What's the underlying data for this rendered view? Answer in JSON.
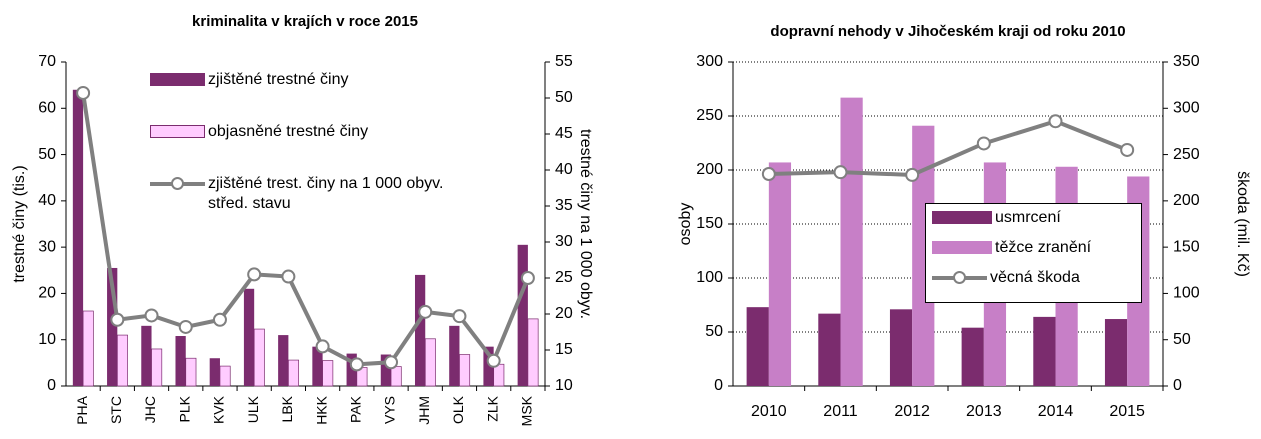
{
  "chart_data": [
    {
      "type": "bar",
      "title": "kriminalita v krajích v roce 2015",
      "y_label": "trestné činy (tis.)",
      "y2_label": "trestné činy na 1 000 obyv.",
      "categories": [
        "PHA",
        "STC",
        "JHC",
        "PLK",
        "KVK",
        "ULK",
        "LBK",
        "HKK",
        "PAK",
        "VYS",
        "JHM",
        "OLK",
        "ZLK",
        "MSK"
      ],
      "series": [
        {
          "name": "zjištěné trestné činy",
          "color": "#7b2c6e",
          "values": [
            64,
            25.5,
            13,
            10.8,
            6,
            21,
            11,
            8.5,
            7,
            6.8,
            24,
            13,
            8.5,
            30.5
          ]
        },
        {
          "name": "objasněné trestné činy",
          "color": "#ffccff",
          "values": [
            16.2,
            11,
            8,
            6,
            4.3,
            12.3,
            5.6,
            5.5,
            4,
            4.2,
            10.2,
            6.8,
            4.7,
            14.5
          ]
        },
        {
          "name": "zjištěné trest. činy na 1 000 obyv.\nstřed. stavu",
          "color": "#808080",
          "axis": "y2",
          "values": [
            50.7,
            19.2,
            19.8,
            18.2,
            19.2,
            25.5,
            25.2,
            15.5,
            13,
            13.3,
            20.3,
            19.7,
            13.5,
            25
          ]
        }
      ],
      "ylim": [
        0,
        70
      ],
      "yticks": [
        0,
        10,
        20,
        30,
        40,
        50,
        60,
        70
      ],
      "y2lim": [
        10,
        55
      ],
      "y2ticks": [
        10,
        15,
        20,
        25,
        30,
        35,
        40,
        45,
        50,
        55
      ],
      "grid": false
    },
    {
      "type": "bar",
      "title": "dopravní nehody v Jihočeském kraji od roku 2010",
      "y_label": "osoby",
      "y2_label": "škoda (mil. Kč)",
      "categories": [
        "2010",
        "2011",
        "2012",
        "2013",
        "2014",
        "2015"
      ],
      "series": [
        {
          "name": "usmrcení",
          "color": "#7b2c6e",
          "values": [
            73,
            67,
            71,
            54,
            64,
            62
          ]
        },
        {
          "name": "těžce zranění",
          "color": "#c77fc7",
          "values": [
            207,
            267,
            241,
            207,
            203,
            194
          ]
        },
        {
          "name": "věcná škoda",
          "color": "#808080",
          "axis": "y2",
          "values": [
            229,
            231,
            228,
            262,
            286,
            255
          ]
        }
      ],
      "ylim": [
        0,
        300
      ],
      "yticks": [
        0,
        50,
        100,
        150,
        200,
        250,
        300
      ],
      "y2lim": [
        0,
        350
      ],
      "y2ticks": [
        0,
        50,
        100,
        150,
        200,
        250,
        300,
        350
      ],
      "grid": true
    }
  ]
}
